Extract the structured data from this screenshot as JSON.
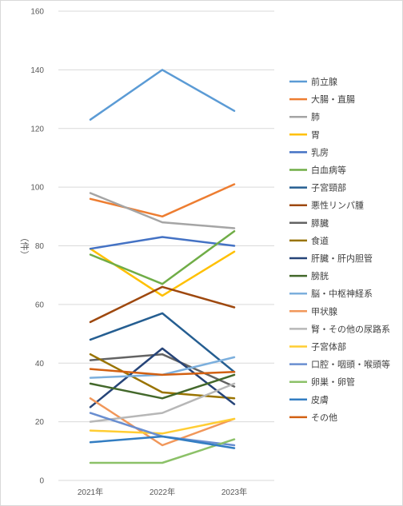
{
  "chart_data": {
    "type": "line",
    "categories": [
      "2021年",
      "2022年",
      "2023年"
    ],
    "ylabel": "（件）",
    "ylim": [
      0,
      160
    ],
    "yticks": [
      0,
      20,
      40,
      60,
      80,
      100,
      120,
      140,
      160
    ],
    "grid": true,
    "legend": "right",
    "series": [
      {
        "name": "前立腺",
        "color": "#5b9bd5",
        "values": [
          123,
          140,
          126
        ]
      },
      {
        "name": "大腸・直腸",
        "color": "#ed7d31",
        "values": [
          96,
          90,
          101
        ]
      },
      {
        "name": "肺",
        "color": "#a5a5a5",
        "values": [
          98,
          88,
          86
        ]
      },
      {
        "name": "胃",
        "color": "#ffc000",
        "values": [
          79,
          63,
          78
        ]
      },
      {
        "name": "乳房",
        "color": "#4472c4",
        "values": [
          79,
          83,
          80
        ]
      },
      {
        "name": "白血病等",
        "color": "#70ad47",
        "values": [
          77,
          67,
          85
        ]
      },
      {
        "name": "子宮頸部",
        "color": "#255e91",
        "values": [
          48,
          57,
          37
        ]
      },
      {
        "name": "悪性リンパ腫",
        "color": "#9e480e",
        "values": [
          54,
          66,
          59
        ]
      },
      {
        "name": "膵臓",
        "color": "#636363",
        "values": [
          41,
          43,
          32
        ]
      },
      {
        "name": "食道",
        "color": "#997300",
        "values": [
          43,
          30,
          28
        ]
      },
      {
        "name": "肝臓・肝内胆管",
        "color": "#264478",
        "values": [
          25,
          45,
          26
        ]
      },
      {
        "name": "膀胱",
        "color": "#43682b",
        "values": [
          33,
          28,
          36
        ]
      },
      {
        "name": "脳・中枢神経系",
        "color": "#7cafdd",
        "values": [
          35,
          36,
          42
        ]
      },
      {
        "name": "甲状腺",
        "color": "#f1975a",
        "values": [
          28,
          12,
          21
        ]
      },
      {
        "name": "腎・その他の尿路系",
        "color": "#b7b7b7",
        "values": [
          20,
          23,
          33
        ]
      },
      {
        "name": "子宮体部",
        "color": "#ffcd33",
        "values": [
          17,
          16,
          21
        ]
      },
      {
        "name": "口腔・咽頭・喉頭等",
        "color": "#698ed0",
        "values": [
          23,
          15,
          12
        ]
      },
      {
        "name": "卵巣・卵管",
        "color": "#8cc168",
        "values": [
          6,
          6,
          14
        ]
      },
      {
        "name": "皮膚",
        "color": "#327dc2",
        "values": [
          13,
          15,
          11
        ]
      },
      {
        "name": "その他",
        "color": "#d26012",
        "values": [
          38,
          36,
          37
        ]
      }
    ]
  }
}
